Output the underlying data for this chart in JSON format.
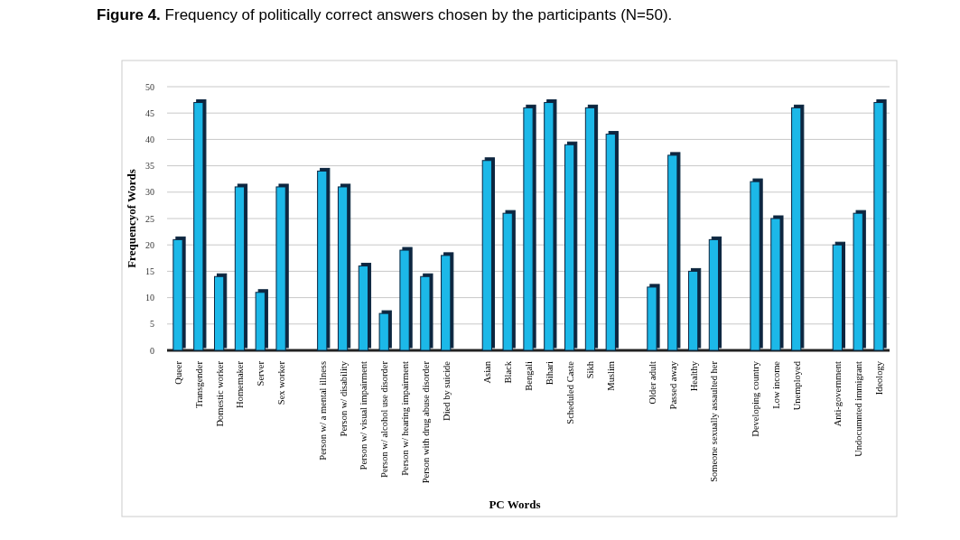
{
  "chart_data": {
    "type": "bar",
    "title": "Figure 4. Frequency of politically correct answers chosen by the participants (N=50).",
    "xlabel": "PC Words",
    "ylabel": "Frequencyof Words",
    "categories": [
      "Queer",
      "Transgender",
      "Domestic worker",
      "Homemaker",
      "Server",
      "Sex worker",
      null,
      "Person w/ a mental illness",
      "Person w/ disability",
      "Person w/ visual impairment",
      "Person w/ alcohol use disorder",
      "Person w/ hearing impairment",
      "Person with drug abuse disorder",
      "Died by suicide",
      null,
      "Asian",
      "Black",
      "Bengali",
      "Bihari",
      "Scheduled Caste",
      "Sikh",
      "Muslim",
      null,
      "Older adult",
      "Passed away",
      "Healthy",
      "Someone sexually assaulted her",
      null,
      "Developing country",
      "Low income",
      "Unemployed",
      null,
      "Anti-government",
      "Undocumnted immigrant",
      "Ideology"
    ],
    "values": [
      21,
      47,
      14,
      31,
      11,
      31,
      null,
      34,
      31,
      16,
      7,
      19,
      14,
      18,
      null,
      36,
      26,
      46,
      47,
      39,
      46,
      41,
      null,
      12,
      37,
      15,
      21,
      null,
      32,
      25,
      46,
      null,
      20,
      26,
      47
    ],
    "color": "#1ab8e8",
    "ylim": [
      0,
      50
    ],
    "yticks": [
      0,
      5,
      10,
      15,
      20,
      25,
      30,
      35,
      40,
      45,
      50
    ],
    "grid": "y"
  }
}
